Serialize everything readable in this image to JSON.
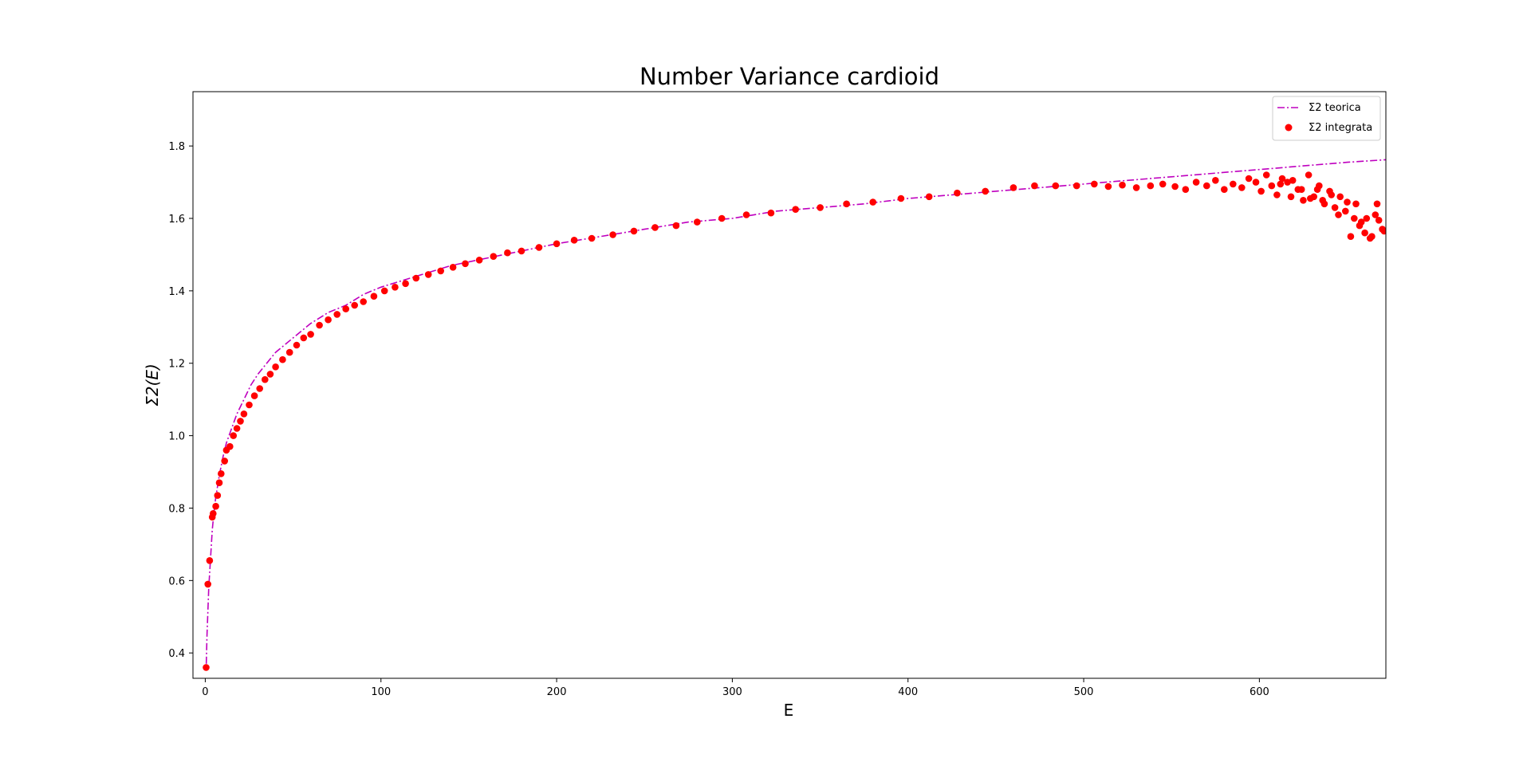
{
  "chart_data": {
    "type": "scatter",
    "title": "Number Variance cardioid",
    "xlabel": "E",
    "ylabel": "Σ2(E)",
    "xlim": [
      -7,
      672
    ],
    "ylim": [
      0.33,
      1.95
    ],
    "xticks": [
      0,
      100,
      200,
      300,
      400,
      500,
      600
    ],
    "yticks": [
      0.4,
      0.6,
      0.8,
      1.0,
      1.2,
      1.4,
      1.6,
      1.8
    ],
    "xtick_labels": [
      "0",
      "100",
      "200",
      "300",
      "400",
      "500",
      "600"
    ],
    "ytick_labels": [
      "0.4",
      "0.6",
      "0.8",
      "1.0",
      "1.2",
      "1.4",
      "1.6",
      "1.8"
    ],
    "grid": false,
    "legend_position": "top-right",
    "series": [
      {
        "name": "Σ2 teorica",
        "kind": "line",
        "style": "dash-dot",
        "color": "#bf00bf",
        "x": [
          0.6,
          1,
          2,
          3,
          4,
          5,
          6,
          8,
          10,
          12,
          15,
          18,
          22,
          26,
          30,
          35,
          40,
          50,
          60,
          70,
          80,
          90,
          100,
          120,
          140,
          160,
          180,
          200,
          225,
          250,
          275,
          300,
          325,
          350,
          375,
          400,
          425,
          450,
          475,
          500,
          525,
          550,
          575,
          600,
          625,
          650,
          672
        ],
        "y": [
          0.37,
          0.45,
          0.58,
          0.66,
          0.74,
          0.79,
          0.83,
          0.89,
          0.94,
          0.98,
          1.02,
          1.06,
          1.1,
          1.14,
          1.17,
          1.2,
          1.23,
          1.27,
          1.31,
          1.34,
          1.36,
          1.39,
          1.41,
          1.44,
          1.47,
          1.49,
          1.51,
          1.53,
          1.55,
          1.57,
          1.59,
          1.6,
          1.62,
          1.63,
          1.64,
          1.655,
          1.665,
          1.675,
          1.685,
          1.695,
          1.705,
          1.715,
          1.725,
          1.735,
          1.745,
          1.755,
          1.762
        ]
      },
      {
        "name": "Σ2 integrata",
        "kind": "scatter",
        "color": "#ff0000",
        "x": [
          0.5,
          1.5,
          2.5,
          4,
          4.5,
          6,
          7,
          8,
          9,
          11,
          12,
          14,
          16,
          18,
          20,
          22,
          25,
          28,
          31,
          34,
          37,
          40,
          44,
          48,
          52,
          56,
          60,
          65,
          70,
          75,
          80,
          85,
          90,
          96,
          102,
          108,
          114,
          120,
          127,
          134,
          141,
          148,
          156,
          164,
          172,
          180,
          190,
          200,
          210,
          220,
          232,
          244,
          256,
          268,
          280,
          294,
          308,
          322,
          336,
          350,
          365,
          380,
          396,
          412,
          428,
          444,
          460,
          472,
          484,
          496,
          506,
          514,
          522,
          530,
          538,
          545,
          552,
          558,
          564,
          570,
          575,
          580,
          585,
          590,
          594,
          598,
          601,
          604,
          607,
          610,
          613,
          616,
          619,
          622,
          625,
          628,
          631,
          634,
          637,
          640,
          643,
          646,
          649,
          652,
          655,
          658,
          661,
          664,
          667,
          670
        ],
        "y": [
          0.36,
          0.59,
          0.655,
          0.775,
          0.785,
          0.805,
          0.835,
          0.87,
          0.895,
          0.93,
          0.96,
          0.97,
          1.0,
          1.02,
          1.04,
          1.06,
          1.085,
          1.11,
          1.13,
          1.155,
          1.17,
          1.19,
          1.21,
          1.23,
          1.25,
          1.27,
          1.28,
          1.305,
          1.32,
          1.335,
          1.35,
          1.36,
          1.37,
          1.385,
          1.4,
          1.41,
          1.42,
          1.435,
          1.445,
          1.455,
          1.465,
          1.475,
          1.485,
          1.495,
          1.505,
          1.51,
          1.52,
          1.53,
          1.54,
          1.545,
          1.555,
          1.565,
          1.575,
          1.58,
          1.59,
          1.6,
          1.61,
          1.615,
          1.625,
          1.63,
          1.64,
          1.645,
          1.655,
          1.66,
          1.67,
          1.675,
          1.685,
          1.69,
          1.69,
          1.69,
          1.695,
          1.688,
          1.692,
          1.685,
          1.69,
          1.695,
          1.688,
          1.68,
          1.7,
          1.69,
          1.705,
          1.68,
          1.695,
          1.685,
          1.71,
          1.7,
          1.675,
          1.72,
          1.69,
          1.665,
          1.71,
          1.7,
          1.705,
          1.68,
          1.65,
          1.72,
          1.66,
          1.69,
          1.64,
          1.675,
          1.63,
          1.66,
          1.62,
          1.55,
          1.64,
          1.59,
          1.6,
          1.55,
          1.64,
          1.57
        ],
        "extra_points": {
          "x": [
            612,
            618,
            624,
            629,
            633,
            636,
            641,
            645,
            650,
            654,
            657,
            660,
            663,
            666,
            668,
            671
          ],
          "y": [
            1.695,
            1.66,
            1.68,
            1.655,
            1.68,
            1.65,
            1.665,
            1.61,
            1.645,
            1.6,
            1.58,
            1.56,
            1.545,
            1.61,
            1.595,
            1.565
          ]
        }
      }
    ]
  }
}
